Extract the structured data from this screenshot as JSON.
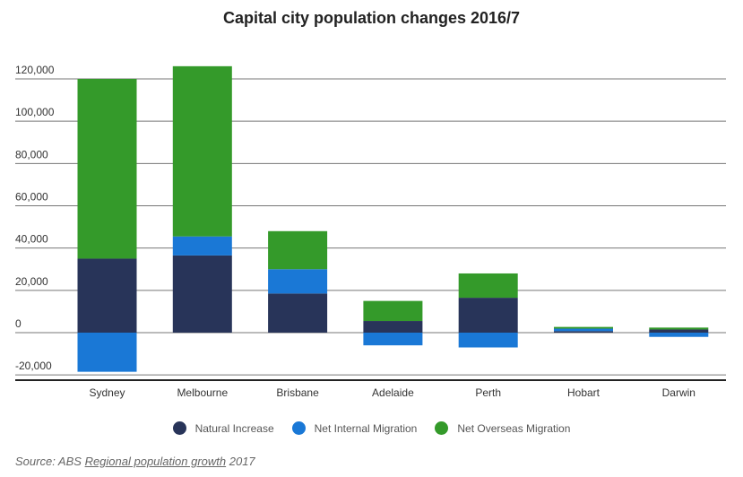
{
  "chart_data": {
    "type": "bar",
    "stacked": true,
    "title": "Capital city population changes 2016/7",
    "categories": [
      "Sydney",
      "Melbourne",
      "Brisbane",
      "Adelaide",
      "Perth",
      "Hobart",
      "Darwin"
    ],
    "series": [
      {
        "name": "Natural Increase",
        "color": "#283459",
        "values": [
          35000,
          36500,
          18500,
          5500,
          16500,
          700,
          1500
        ]
      },
      {
        "name": "Net Internal Migration",
        "color": "#1a78d6",
        "values": [
          -18500,
          9000,
          11500,
          -6000,
          -7000,
          1200,
          -2000
        ]
      },
      {
        "name": "Net Overseas Migration",
        "color": "#349a2a",
        "values": [
          85000,
          80500,
          18000,
          9500,
          11500,
          800,
          900
        ]
      }
    ],
    "y_ticks": [
      "120,000",
      "100,000",
      "80,000",
      "60,000",
      "40,000",
      "20,000",
      "0",
      "-20,000"
    ],
    "y_tick_values": [
      120000,
      100000,
      80000,
      60000,
      40000,
      20000,
      0,
      -20000
    ],
    "ylim": [
      -22000,
      124000
    ],
    "grid": true,
    "legend_position": "bottom"
  },
  "source": {
    "prefix": "Source: ABS ",
    "link": "Regional population growth",
    "suffix": " 2017"
  }
}
